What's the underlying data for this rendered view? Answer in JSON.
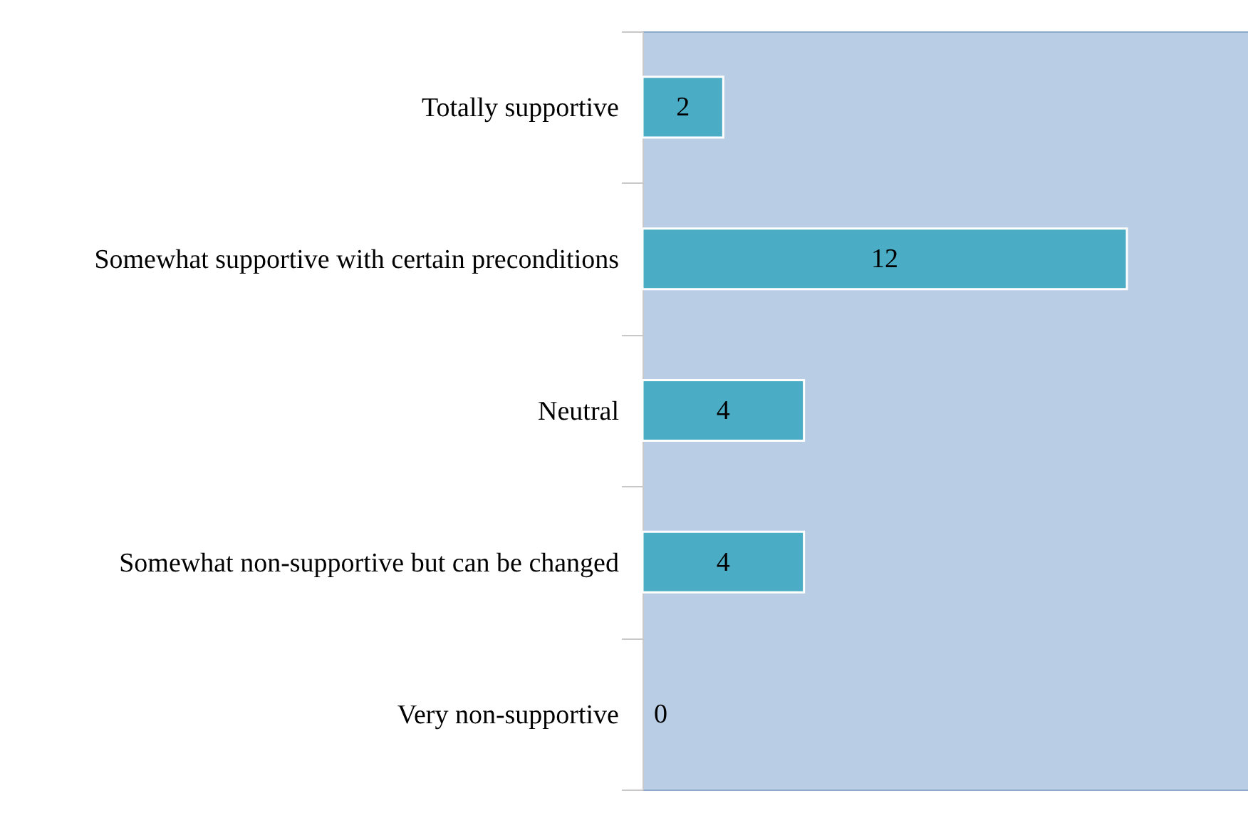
{
  "chart_data": {
    "type": "bar",
    "orientation": "horizontal",
    "categories": [
      "Totally supportive",
      "Somewhat supportive with certain preconditions",
      "Neutral",
      "Somewhat non-supportive but can be changed",
      "Very non-supportive"
    ],
    "values": [
      2,
      12,
      4,
      4,
      0
    ],
    "color": "#4bacc6",
    "data_labels": true,
    "tick_labels": "y"
  }
}
